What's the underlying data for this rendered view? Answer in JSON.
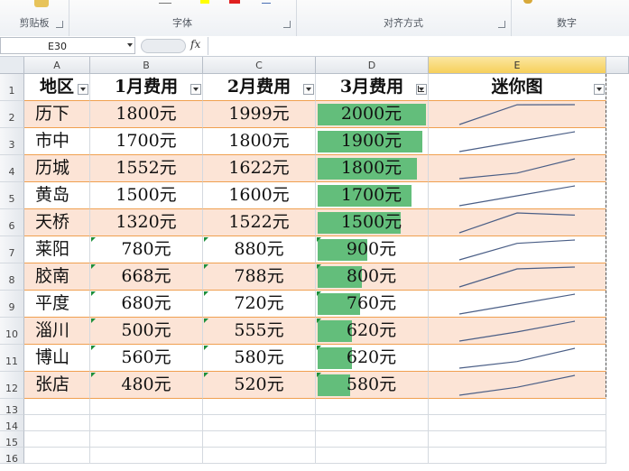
{
  "ribbon": {
    "groups": [
      {
        "label": "剪贴板"
      },
      {
        "label": "字体"
      },
      {
        "label": "对齐方式"
      },
      {
        "label": "数字"
      }
    ]
  },
  "formula_bar": {
    "name_box": "E30",
    "fx_label": "fx",
    "content": ""
  },
  "columns": [
    "A",
    "B",
    "C",
    "D",
    "E"
  ],
  "row_numbers": [
    "1",
    "2",
    "3",
    "4",
    "5",
    "6",
    "7",
    "8",
    "9",
    "10",
    "11",
    "12",
    "13",
    "14",
    "15",
    "16"
  ],
  "header": {
    "region": "地区",
    "m1": "1月费用",
    "m2": "2月费用",
    "m3": "3月费用",
    "spark": "迷你图"
  },
  "rows": [
    {
      "region": "历下",
      "m1": "1800元",
      "m2": "1999元",
      "m3": "2000元",
      "v": [
        1800,
        1999,
        2000
      ],
      "warn": false
    },
    {
      "region": "市中",
      "m1": "1700元",
      "m2": "1800元",
      "m3": "1900元",
      "v": [
        1700,
        1800,
        1900
      ],
      "warn": false
    },
    {
      "region": "历城",
      "m1": "1552元",
      "m2": "1622元",
      "m3": "1800元",
      "v": [
        1552,
        1622,
        1800
      ],
      "warn": false
    },
    {
      "region": "黄岛",
      "m1": "1500元",
      "m2": "1600元",
      "m3": "1700元",
      "v": [
        1500,
        1600,
        1700
      ],
      "warn": false
    },
    {
      "region": "天桥",
      "m1": "1320元",
      "m2": "1522元",
      "m3": "1500元",
      "v": [
        1320,
        1522,
        1500
      ],
      "warn": false
    },
    {
      "region": "莱阳",
      "m1": "780元",
      "m2": "880元",
      "m3": "900元",
      "v": [
        780,
        880,
        900
      ],
      "warn": true
    },
    {
      "region": "胶南",
      "m1": "668元",
      "m2": "788元",
      "m3": "800元",
      "v": [
        668,
        788,
        800
      ],
      "warn": true
    },
    {
      "region": "平度",
      "m1": "680元",
      "m2": "720元",
      "m3": "760元",
      "v": [
        680,
        720,
        760
      ],
      "warn": true
    },
    {
      "region": "淄川",
      "m1": "500元",
      "m2": "555元",
      "m3": "620元",
      "v": [
        500,
        555,
        620
      ],
      "warn": true
    },
    {
      "region": "博山",
      "m1": "560元",
      "m2": "580元",
      "m3": "620元",
      "v": [
        560,
        580,
        620
      ],
      "warn": true
    },
    {
      "region": "张店",
      "m1": "480元",
      "m2": "520元",
      "m3": "580元",
      "v": [
        480,
        520,
        580
      ],
      "warn": true
    }
  ],
  "colors": {
    "band": "#fce4d6",
    "databar": "#63be7b",
    "sparkline": "#4a5e86",
    "selected_col": "#f6cf5b"
  }
}
